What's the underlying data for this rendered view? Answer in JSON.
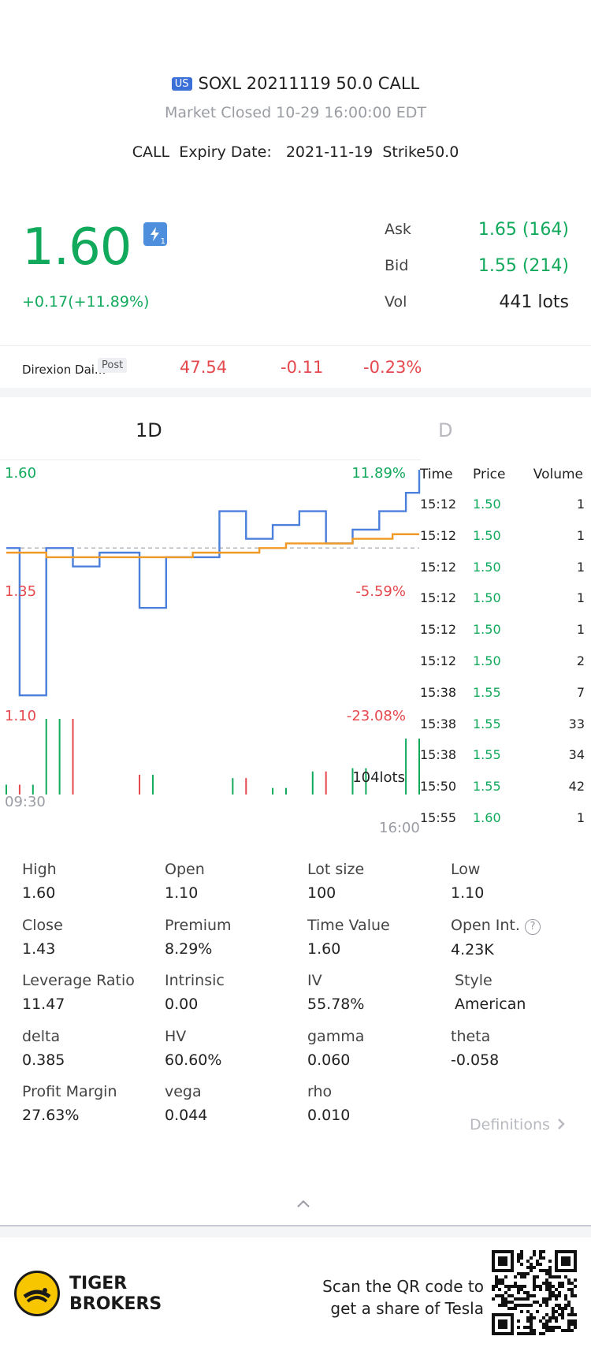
{
  "header": {
    "market_badge": "US",
    "contract": "SOXL 20211119 50.0 CALL",
    "market_status": "Market Closed  10-29 16:00:00 EDT",
    "type": "CALL",
    "expiry_label": "Expiry Date:",
    "expiry_value": "2021-11-19",
    "strike_label": "Strike",
    "strike_value": "50.0"
  },
  "quote": {
    "price": "1.60",
    "change": "+0.17(+11.89%)",
    "lightning_icon": "lightning-level-1",
    "lightning_sub": "1",
    "ask_label": "Ask",
    "ask_value": "1.65 (164)",
    "bid_label": "Bid",
    "bid_value": "1.55 (214)",
    "vol_label": "Vol",
    "vol_value": "441 lots"
  },
  "underlying": {
    "name": "Direxion Dai...",
    "session": "Post",
    "price": "47.54",
    "change": "-0.11",
    "change_pct": "-0.23%"
  },
  "tabs": [
    "1D",
    "D"
  ],
  "chart_data": {
    "type": "line",
    "ylim": [
      1.1,
      1.6
    ],
    "x_labels": [
      "09:30",
      "16:00"
    ],
    "y_left_labels": [
      "1.60",
      "1.35",
      "1.10"
    ],
    "y_right_labels": [
      "11.89%",
      "-5.59%",
      "-23.08%"
    ],
    "prev_close": 1.43,
    "volume_label": "104lots",
    "series": [
      {
        "values": [
          1.43,
          1.11,
          1.11,
          1.43,
          1.43,
          1.39,
          1.39,
          1.42,
          1.42,
          1.42,
          1.3,
          1.3,
          1.41,
          1.41,
          1.41,
          1.41,
          1.51,
          1.51,
          1.45,
          1.45,
          1.48,
          1.48,
          1.51,
          1.51,
          1.44,
          1.44,
          1.47,
          1.47,
          1.51,
          1.51,
          1.55,
          1.6
        ]
      },
      {
        "values": [
          1.42,
          1.42,
          1.42,
          1.41,
          1.41,
          1.41,
          1.41,
          1.41,
          1.41,
          1.41,
          1.41,
          1.41,
          1.41,
          1.41,
          1.42,
          1.42,
          1.42,
          1.42,
          1.42,
          1.43,
          1.43,
          1.44,
          1.44,
          1.44,
          1.44,
          1.44,
          1.45,
          1.45,
          1.45,
          1.46,
          1.46,
          1.46
        ]
      }
    ],
    "volume": [
      6,
      6,
      6,
      46,
      46,
      46,
      0,
      0,
      0,
      0,
      12,
      12,
      0,
      0,
      0,
      0,
      0,
      10,
      10,
      0,
      4,
      4,
      0,
      14,
      14,
      0,
      16,
      16,
      0,
      0,
      34,
      34
    ]
  },
  "trades": {
    "headers": [
      "Time",
      "Price",
      "Volume"
    ],
    "rows": [
      {
        "time": "15:12",
        "price": "1.50",
        "volume": "1"
      },
      {
        "time": "15:12",
        "price": "1.50",
        "volume": "1"
      },
      {
        "time": "15:12",
        "price": "1.50",
        "volume": "1"
      },
      {
        "time": "15:12",
        "price": "1.50",
        "volume": "1"
      },
      {
        "time": "15:12",
        "price": "1.50",
        "volume": "1"
      },
      {
        "time": "15:12",
        "price": "1.50",
        "volume": "2"
      },
      {
        "time": "15:38",
        "price": "1.55",
        "volume": "7"
      },
      {
        "time": "15:38",
        "price": "1.55",
        "volume": "33"
      },
      {
        "time": "15:38",
        "price": "1.55",
        "volume": "34"
      },
      {
        "time": "15:50",
        "price": "1.55",
        "volume": "42"
      },
      {
        "time": "15:55",
        "price": "1.60",
        "volume": "1"
      }
    ]
  },
  "stats": [
    {
      "label": "High",
      "value": "1.60"
    },
    {
      "label": "Open",
      "value": "1.10"
    },
    {
      "label": "Lot size",
      "value": "100"
    },
    {
      "label": "Low",
      "value": "1.10"
    },
    {
      "label": "Close",
      "value": "1.43"
    },
    {
      "label": "Premium",
      "value": "8.29%"
    },
    {
      "label": "Time Value",
      "value": "1.60"
    },
    {
      "label": "Open Int.",
      "value": "4.23K"
    },
    {
      "label": "Leverage Ratio",
      "value": "11.47"
    },
    {
      "label": "Intrinsic",
      "value": "0.00"
    },
    {
      "label": "IV",
      "value": "55.78%"
    },
    {
      "label": "Style",
      "value": "American"
    },
    {
      "label": "delta",
      "value": "0.385"
    },
    {
      "label": "HV",
      "value": "60.60%"
    },
    {
      "label": "gamma",
      "value": "0.060"
    },
    {
      "label": "theta",
      "value": "-0.058"
    },
    {
      "label": "Profit Margin",
      "value": "27.63%"
    },
    {
      "label": "vega",
      "value": "0.044"
    },
    {
      "label": "rho",
      "value": "0.010"
    }
  ],
  "definitions_label": "Definitions",
  "footer": {
    "brand_line1": "TIGER",
    "brand_line2": "BROKERS",
    "qr_line1": "Scan the QR code to",
    "qr_line2": "get a share of Tesla"
  },
  "colors": {
    "up": "#11a95b",
    "down": "#e5484d",
    "price_line": "#4a7fdb",
    "avg_line": "#f09a25",
    "accent": "#3b6fd8"
  }
}
